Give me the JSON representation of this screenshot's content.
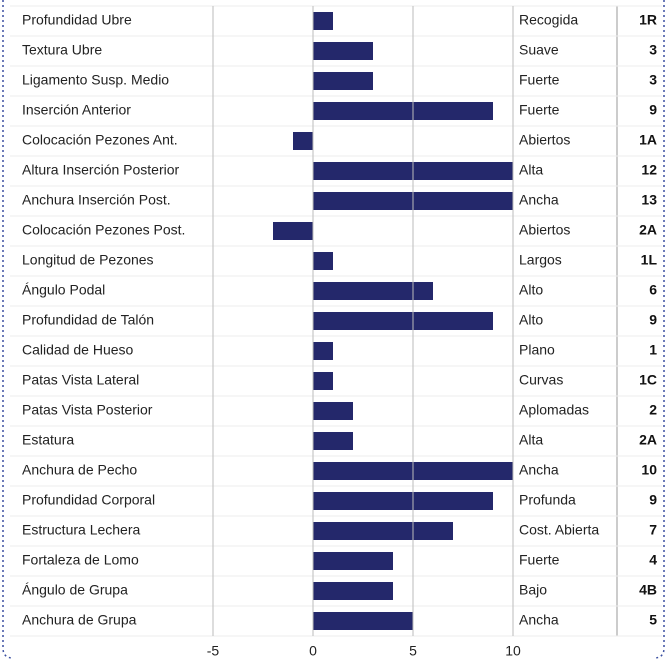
{
  "chart_data": {
    "type": "bar",
    "orientation": "horizontal",
    "categories": [
      "Profundidad Ubre",
      "Textura Ubre",
      "Ligamento Susp. Medio",
      "Inserción Anterior",
      "Colocación Pezones Ant.",
      "Altura Inserción Posterior",
      "Anchura Inserción Post.",
      "Colocación Pezones Post.",
      "Longitud de Pezones",
      "Ángulo Podal",
      "Profundidad de Talón",
      "Calidad de Hueso",
      "Patas Vista Lateral",
      "Patas Vista Posterior",
      "Estatura",
      "Anchura de Pecho",
      "Profundidad Corporal",
      "Estructura Lechera",
      "Fortaleza de Lomo",
      "Ángulo de Grupa",
      "Anchura de Grupa"
    ],
    "values": [
      1,
      3,
      3,
      9,
      -1,
      12,
      13,
      -2,
      1,
      6,
      9,
      1,
      1,
      2,
      2,
      10,
      9,
      7,
      4,
      4,
      5
    ],
    "value_labels": [
      "1R",
      "3",
      "3",
      "9",
      "1A",
      "12",
      "13",
      "2A",
      "1L",
      "6",
      "9",
      "1",
      "1C",
      "2",
      "2A",
      "10",
      "9",
      "7",
      "4",
      "4B",
      "5"
    ],
    "descriptors": [
      "Recogida",
      "Suave",
      "Fuerte",
      "Fuerte",
      "Abiertos",
      "Alta",
      "Ancha",
      "Abiertos",
      "Largos",
      "Alto",
      "Alto",
      "Plano",
      "Curvas",
      "Aplomadas",
      "Alta",
      "Ancha",
      "Profunda",
      "Cost. Abierta",
      "Fuerte",
      "Bajo",
      "Ancha"
    ],
    "color": "#24286b",
    "xlim": [
      -5,
      10
    ],
    "xticks": [
      -5,
      0,
      5,
      10
    ],
    "grid": true
  }
}
